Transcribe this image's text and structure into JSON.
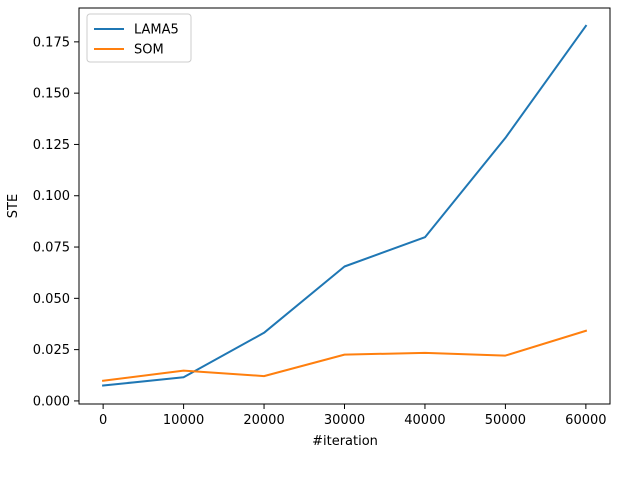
{
  "chart_data": {
    "type": "line",
    "xlabel": "#iteration",
    "ylabel": "STE",
    "x": [
      0,
      10000,
      20000,
      30000,
      40000,
      50000,
      60000
    ],
    "xticks": [
      "0",
      "10000",
      "20000",
      "30000",
      "40000",
      "50000",
      "60000"
    ],
    "yticks": [
      "0.000",
      "0.025",
      "0.050",
      "0.075",
      "0.100",
      "0.125",
      "0.150",
      "0.175"
    ],
    "ytick_values": [
      0.0,
      0.025,
      0.05,
      0.075,
      0.1,
      0.125,
      0.15,
      0.175
    ],
    "xlim": [
      -3000,
      63000
    ],
    "ylim": [
      -0.0015,
      0.1915
    ],
    "grid": false,
    "legend_position": "top-left",
    "series": [
      {
        "name": "LAMA5",
        "color": "#1f77b4",
        "values": [
          0.0075,
          0.0115,
          0.0332,
          0.0655,
          0.0798,
          0.1282,
          0.1828
        ]
      },
      {
        "name": "SOM",
        "color": "#ff7f0e",
        "values": [
          0.0098,
          0.0148,
          0.0121,
          0.0226,
          0.0234,
          0.0221,
          0.0342
        ]
      }
    ]
  }
}
